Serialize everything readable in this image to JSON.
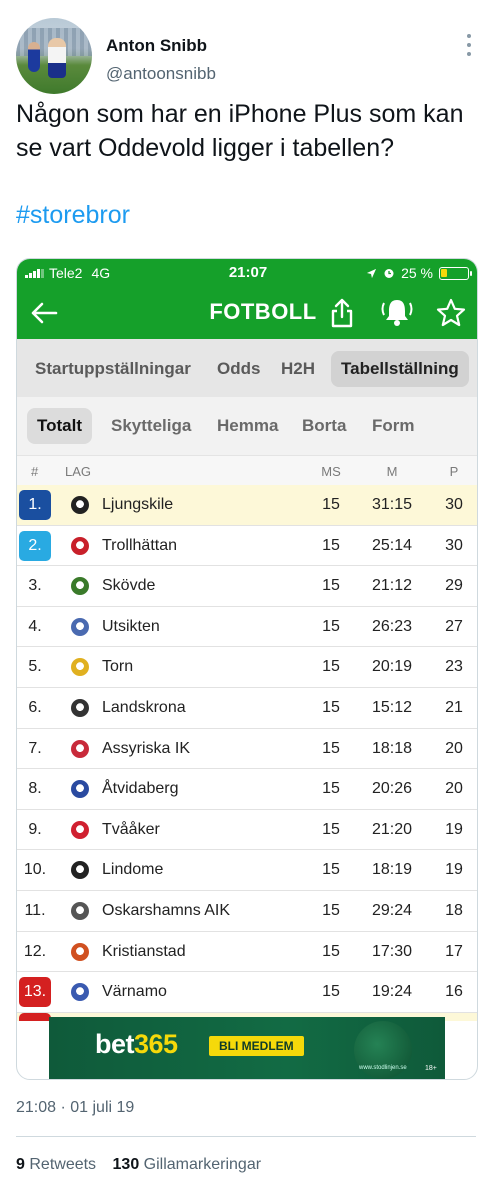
{
  "tweet": {
    "author_name": "Anton Snibb",
    "author_handle": "@antoonsnibb",
    "text": "Någon som har en iPhone Plus som kan se vart Oddevold ligger i tabellen?",
    "hashtag": "#storebror",
    "timestamp": "21:08 · 01 juli 19",
    "retweet_count": "9",
    "retweet_label": "Retweets",
    "like_count": "130",
    "like_label": "Gillamarkeringar"
  },
  "phone_status": {
    "carrier": "Tele2",
    "network": "4G",
    "time": "21:07",
    "battery": "25 %"
  },
  "app": {
    "title": "FOTBOLL",
    "tabs_primary": [
      {
        "label": "Startuppställningar",
        "active": false
      },
      {
        "label": "Odds",
        "active": false
      },
      {
        "label": "H2H",
        "active": false
      },
      {
        "label": "Tabellställning",
        "active": true
      }
    ],
    "tabs_secondary": [
      {
        "label": "Totalt",
        "active": true
      },
      {
        "label": "Skytteliga",
        "active": false
      },
      {
        "label": "Hemma",
        "active": false
      },
      {
        "label": "Borta",
        "active": false
      },
      {
        "label": "Form",
        "active": false
      }
    ],
    "table_headers": {
      "pos": "#",
      "team": "LAG",
      "ms": "MS",
      "m": "M",
      "p": "P"
    },
    "standings": [
      {
        "pos": "1.",
        "team": "Ljungskile",
        "ms": "15",
        "m": "31:15",
        "p": "30",
        "badge": "blue",
        "highlight": true,
        "logo_color": "#222222"
      },
      {
        "pos": "2.",
        "team": "Trollhättan",
        "ms": "15",
        "m": "25:14",
        "p": "30",
        "badge": "lightblue",
        "highlight": false,
        "logo_color": "#c8202a"
      },
      {
        "pos": "3.",
        "team": "Skövde",
        "ms": "15",
        "m": "21:12",
        "p": "29",
        "badge": "",
        "highlight": false,
        "logo_color": "#3a7a2a"
      },
      {
        "pos": "4.",
        "team": "Utsikten",
        "ms": "15",
        "m": "26:23",
        "p": "27",
        "badge": "",
        "highlight": false,
        "logo_color": "#4a6ab0"
      },
      {
        "pos": "5.",
        "team": "Torn",
        "ms": "15",
        "m": "20:19",
        "p": "23",
        "badge": "",
        "highlight": false,
        "logo_color": "#e0b020"
      },
      {
        "pos": "6.",
        "team": "Landskrona",
        "ms": "15",
        "m": "15:12",
        "p": "21",
        "badge": "",
        "highlight": false,
        "logo_color": "#333333"
      },
      {
        "pos": "7.",
        "team": "Assyriska IK",
        "ms": "15",
        "m": "18:18",
        "p": "20",
        "badge": "",
        "highlight": false,
        "logo_color": "#c82a3a"
      },
      {
        "pos": "8.",
        "team": "Åtvidaberg",
        "ms": "15",
        "m": "20:26",
        "p": "20",
        "badge": "",
        "highlight": false,
        "logo_color": "#2a4aa0"
      },
      {
        "pos": "9.",
        "team": "Tvååker",
        "ms": "15",
        "m": "21:20",
        "p": "19",
        "badge": "",
        "highlight": false,
        "logo_color": "#d02030"
      },
      {
        "pos": "10.",
        "team": "Lindome",
        "ms": "15",
        "m": "18:19",
        "p": "19",
        "badge": "",
        "highlight": false,
        "logo_color": "#222222"
      },
      {
        "pos": "11.",
        "team": "Oskarshamns AIK",
        "ms": "15",
        "m": "29:24",
        "p": "18",
        "badge": "",
        "highlight": false,
        "logo_color": "#555555"
      },
      {
        "pos": "12.",
        "team": "Kristianstad",
        "ms": "15",
        "m": "17:30",
        "p": "17",
        "badge": "",
        "highlight": false,
        "logo_color": "#d05020"
      },
      {
        "pos": "13.",
        "team": "Värnamo",
        "ms": "15",
        "m": "19:24",
        "p": "16",
        "badge": "red",
        "highlight": false,
        "logo_color": "#3a5ab0"
      }
    ],
    "ad": {
      "brand_main": "bet",
      "brand_accent": "365",
      "cta": "BLI MEDLEM",
      "small_text": "www.stodlinjen.se",
      "age": "18+"
    }
  }
}
